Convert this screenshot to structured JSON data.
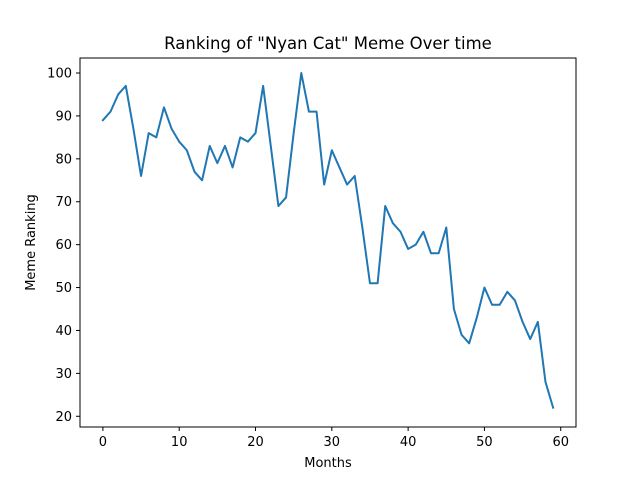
{
  "chart_data": {
    "type": "line",
    "title": "Ranking of \"Nyan Cat\" Meme Over time",
    "xlabel": "Months",
    "ylabel": "Meme Ranking",
    "xlim": [
      -3,
      62
    ],
    "ylim": [
      17.5,
      103.5
    ],
    "xticks": [
      0,
      10,
      20,
      30,
      40,
      50,
      60
    ],
    "yticks": [
      20,
      30,
      40,
      50,
      60,
      70,
      80,
      90,
      100
    ],
    "grid": false,
    "color": "#1f77b4",
    "series": [
      {
        "x": [
          0,
          1,
          2,
          3,
          4,
          5,
          6,
          7,
          8,
          9,
          10,
          11,
          12,
          13,
          14,
          15,
          16,
          17,
          18,
          19,
          20,
          21,
          22,
          23,
          24,
          25,
          26,
          27,
          28,
          29,
          30,
          31,
          32,
          33,
          34,
          35,
          36,
          37,
          38,
          39,
          40,
          41,
          42,
          43,
          44,
          45,
          46,
          47,
          48,
          49,
          50,
          51,
          52,
          53,
          54,
          55,
          56,
          57,
          58,
          59
        ],
        "values": [
          89,
          91,
          95,
          97,
          87,
          76,
          86,
          85,
          92,
          87,
          84,
          82,
          77,
          75,
          83,
          79,
          83,
          78,
          85,
          84,
          86,
          97,
          83,
          69,
          71,
          86,
          100,
          91,
          91,
          74,
          82,
          78,
          74,
          76,
          64,
          51,
          51,
          69,
          65,
          63,
          59,
          60,
          63,
          58,
          58,
          64,
          45,
          39,
          37,
          43,
          50,
          46,
          46,
          49,
          47,
          42,
          38,
          42,
          28,
          22
        ]
      }
    ]
  }
}
